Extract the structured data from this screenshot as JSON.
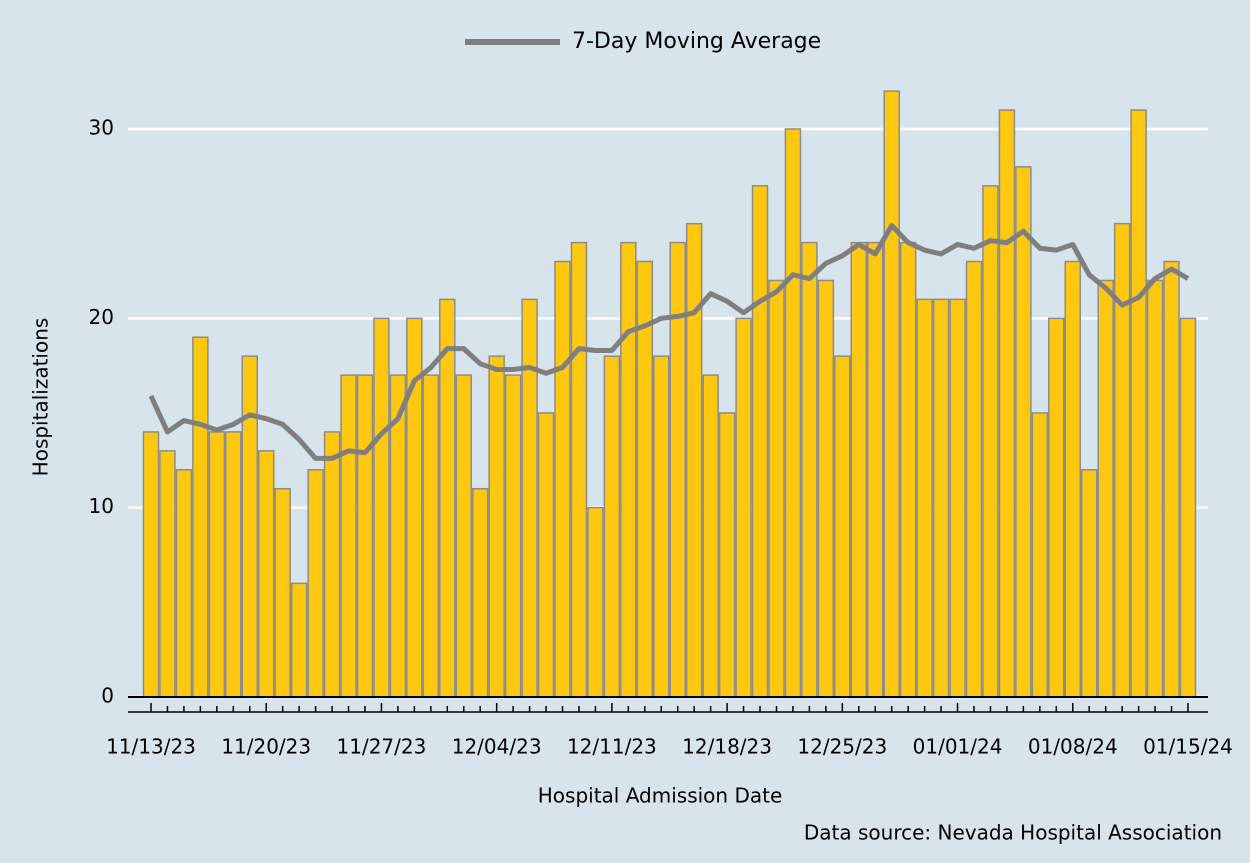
{
  "chart_data": {
    "type": "bar",
    "x_label": "Hospital Admission Date",
    "y_label": "Hospitalizations",
    "source": "Data source: Nevada Hospital Association",
    "categories": [
      "11/13/23",
      null,
      null,
      null,
      null,
      null,
      null,
      "11/20/23",
      null,
      null,
      null,
      null,
      null,
      null,
      "11/27/23",
      null,
      null,
      null,
      null,
      null,
      null,
      "12/04/23",
      null,
      null,
      null,
      null,
      null,
      null,
      "12/11/23",
      null,
      null,
      null,
      null,
      null,
      null,
      "12/18/23",
      null,
      null,
      null,
      null,
      null,
      null,
      "12/25/23",
      null,
      null,
      null,
      null,
      null,
      null,
      "01/01/24",
      null,
      null,
      null,
      null,
      null,
      null,
      "01/08/24",
      null,
      null,
      null,
      null,
      null,
      null,
      "01/15/24"
    ],
    "values": [
      14,
      13,
      12,
      19,
      14,
      14,
      18,
      13,
      11,
      6,
      12,
      14,
      17,
      17,
      20,
      17,
      20,
      17,
      21,
      17,
      11,
      18,
      17,
      21,
      15,
      23,
      24,
      10,
      18,
      24,
      23,
      18,
      24,
      25,
      17,
      15,
      20,
      27,
      22,
      30,
      24,
      22,
      18,
      24,
      24,
      32,
      24,
      21,
      21,
      21,
      23,
      27,
      31,
      28,
      15,
      20,
      23,
      12,
      22,
      25,
      31,
      22,
      23,
      20
    ],
    "color": "#fec810",
    "series": [
      {
        "name": "7-Day Moving Average",
        "type": "line",
        "color": "#7f7f7f",
        "values": [
          15.9,
          14.0,
          14.6,
          14.4,
          14.1,
          14.4,
          14.9,
          14.7,
          14.4,
          13.6,
          12.6,
          12.6,
          13.0,
          12.9,
          13.9,
          14.7,
          16.7,
          17.4,
          18.4,
          18.4,
          17.6,
          17.3,
          17.3,
          17.4,
          17.1,
          17.4,
          18.4,
          18.3,
          18.3,
          19.3,
          19.6,
          20.0,
          20.1,
          20.3,
          21.3,
          20.9,
          20.3,
          20.9,
          21.4,
          22.3,
          22.1,
          22.9,
          23.3,
          23.9,
          23.4,
          24.9,
          24.0,
          23.6,
          23.4,
          23.9,
          23.7,
          24.1,
          24.0,
          24.6,
          23.7,
          23.6,
          23.9,
          22.3,
          21.6,
          20.7,
          21.1,
          22.1,
          22.6,
          22.1
        ]
      }
    ],
    "ylim": [
      0,
      33.5
    ],
    "yticks": [
      0,
      10,
      20,
      30
    ],
    "grid": true
  }
}
